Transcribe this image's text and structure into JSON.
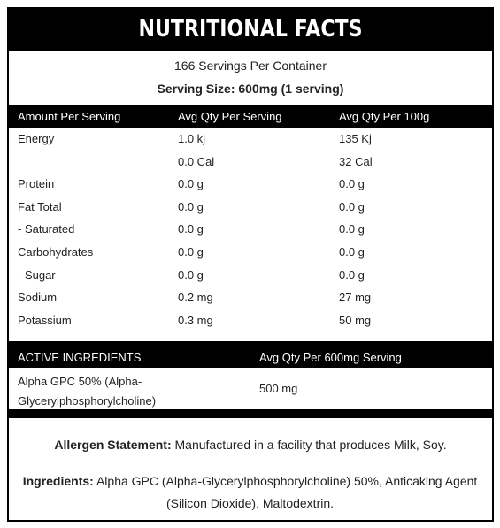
{
  "header": {
    "title": "NUTRITIONAL FACTS",
    "servings": "166 Servings Per Container",
    "serving_size": "Serving Size: 600mg (1 serving)"
  },
  "nutrition_table": {
    "columns": [
      "Amount Per Serving",
      "Avg Qty Per Serving",
      "Avg Qty Per 100g"
    ],
    "rows": [
      [
        "Energy",
        "1.0 kj",
        "135 Kj"
      ],
      [
        null,
        "0.0 Cal",
        "32 Cal"
      ],
      [
        "Protein",
        "0.0 g",
        "0.0 g"
      ],
      [
        "Fat Total",
        "0.0 g",
        "0.0 g"
      ],
      [
        "- Saturated",
        "0.0 g",
        "0.0 g"
      ],
      [
        "Carbohydrates",
        "0.0 g",
        "0.0 g"
      ],
      [
        "- Sugar",
        "0.0 g",
        "0.0 g"
      ],
      [
        "Sodium",
        "0.2 mg",
        "27 mg"
      ],
      [
        "Potassium",
        "0.3 mg",
        "50 mg"
      ]
    ]
  },
  "active_table": {
    "columns": [
      "ACTIVE INGREDIENTS",
      "Avg Qty Per 600mg Serving"
    ],
    "rows": [
      [
        "Alpha GPC 50% (Alpha-Glycerylphosphorylcholine)",
        "500 mg"
      ]
    ]
  },
  "allergen": {
    "label": "Allergen Statement:",
    "text": "Manufactured in a facility that produces Milk, Soy."
  },
  "ingredients": {
    "label": "Ingredients:",
    "text": "Alpha GPC (Alpha-Glycerylphosphorylcholine) 50%, Anticaking Agent (Silicon Dioxide), Maltodextrin."
  }
}
